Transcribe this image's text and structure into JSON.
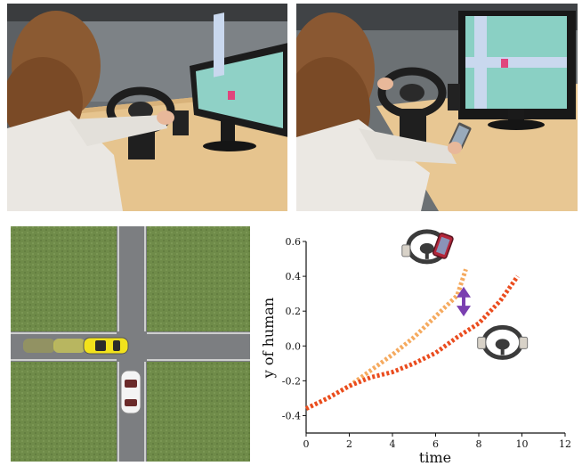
{
  "photos": {
    "left": {
      "scene": "driver-hands-on-wheel"
    },
    "right": {
      "scene": "driver-using-phone"
    }
  },
  "simulation": {
    "colors": {
      "grass": "#6f8b49",
      "road": "#7c7e81",
      "human_car": "#f2e21c",
      "robot_car": "#f4f4f4"
    }
  },
  "chart_data": {
    "type": "line",
    "xlabel": "time",
    "ylabel": "y of human",
    "xlim": [
      0,
      12
    ],
    "ylim": [
      -0.5,
      0.6
    ],
    "xticks": [
      "0",
      "2",
      "4",
      "6",
      "8",
      "10",
      "12"
    ],
    "yticks": [
      "-0.4",
      "-0.2",
      "0.0",
      "0.2",
      "0.4",
      "0.6"
    ],
    "series": [
      {
        "style": "distracted-driver",
        "color": "#f5aa5f",
        "x": [
          0,
          1,
          2,
          3,
          4,
          5,
          6,
          7,
          7.4
        ],
        "y": [
          -0.36,
          -0.3,
          -0.23,
          -0.14,
          -0.05,
          0.05,
          0.17,
          0.29,
          0.44
        ]
      },
      {
        "style": "attentive-driver",
        "color": "#ea4c1e",
        "x": [
          0,
          1,
          2,
          3,
          4,
          5,
          6,
          7,
          8,
          9,
          9.8
        ],
        "y": [
          -0.36,
          -0.3,
          -0.23,
          -0.18,
          -0.15,
          -0.1,
          -0.04,
          0.05,
          0.13,
          0.26,
          0.4
        ]
      }
    ],
    "annotations": [
      {
        "type": "double-arrow",
        "color": "#7a3fb0",
        "x": 7.3,
        "y_from": 0.33,
        "y_to": 0.18
      },
      {
        "type": "icon",
        "name": "wheel-with-phone-icon",
        "x": 5.6,
        "y": 0.57
      },
      {
        "type": "icon",
        "name": "wheel-with-hands-icon",
        "x": 9.1,
        "y": 0.02
      }
    ]
  }
}
